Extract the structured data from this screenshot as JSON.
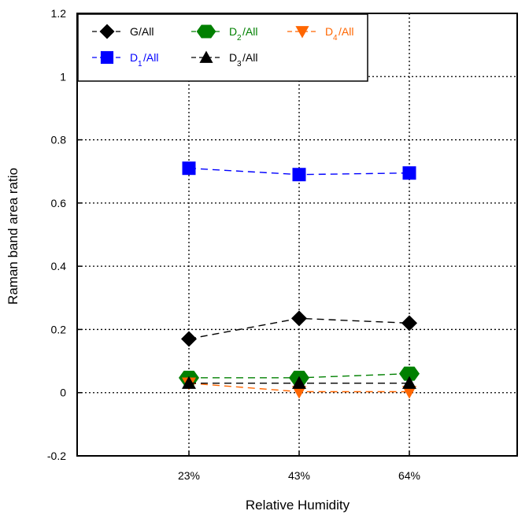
{
  "chart_data": {
    "type": "line",
    "title": "",
    "xlabel": "Relative Humidity",
    "ylabel": "Raman band area ratio",
    "categories": [
      "23%",
      "43%",
      "64%"
    ],
    "ylim": [
      -0.2,
      1.2
    ],
    "yticks": [
      "-0.2",
      "0",
      "0.2",
      "0.4",
      "0.6",
      "0.8",
      "1",
      "1.2"
    ],
    "grid": true,
    "legend_position": "top-left",
    "series": [
      {
        "name": "G/All",
        "label_main": "G",
        "label_sub": "",
        "label_suffix": "/All",
        "color": "#000000",
        "marker": "diamond",
        "values": [
          0.17,
          0.235,
          0.22
        ]
      },
      {
        "name": "D1/All",
        "label_main": "D",
        "label_sub": "1",
        "label_suffix": "/All",
        "color": "#0000ff",
        "marker": "square",
        "values": [
          0.71,
          0.69,
          0.695
        ]
      },
      {
        "name": "D2/All",
        "label_main": "D",
        "label_sub": "2",
        "label_suffix": "/All",
        "color": "#008000",
        "marker": "hexagon",
        "values": [
          0.047,
          0.047,
          0.06
        ]
      },
      {
        "name": "D3/All",
        "label_main": "D",
        "label_sub": "3",
        "label_suffix": "/All",
        "color": "#000000",
        "marker": "triangle-up",
        "values": [
          0.03,
          0.03,
          0.03
        ]
      },
      {
        "name": "D4/All",
        "label_main": "D",
        "label_sub": "4",
        "label_suffix": "/All",
        "color": "#ff6600",
        "marker": "triangle-down",
        "values": [
          0.03,
          0.003,
          0.003
        ]
      }
    ]
  }
}
